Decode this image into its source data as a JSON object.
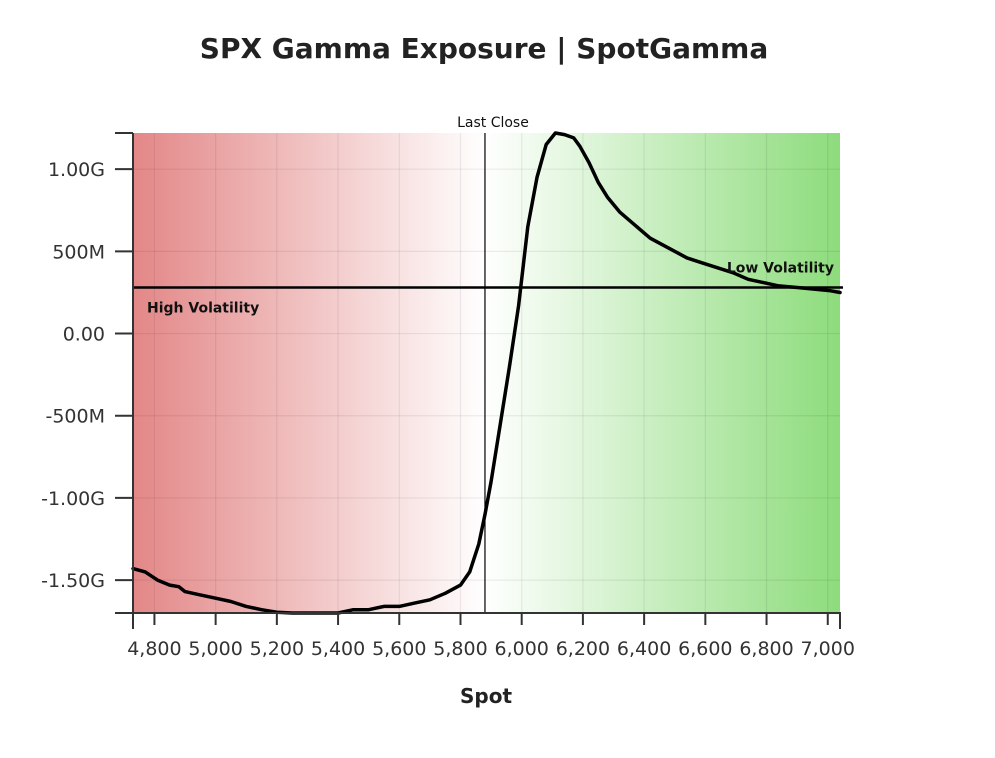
{
  "chart_data": {
    "type": "line",
    "title": "SPX Gamma Exposure | SpotGamma",
    "xlabel": "Spot",
    "ylabel": "",
    "xlim": [
      4730,
      7040
    ],
    "ylim": [
      -1.7,
      1.22
    ],
    "x_ticks": [
      4800,
      5000,
      5200,
      5400,
      5600,
      5800,
      6000,
      6200,
      6400,
      6600,
      6800,
      7000
    ],
    "x_tick_labels": [
      "4,800",
      "5,000",
      "5,200",
      "5,400",
      "5,600",
      "5,800",
      "6,000",
      "6,200",
      "6,400",
      "6,600",
      "6,800",
      "7,000"
    ],
    "y_ticks": [
      1.0,
      0.5,
      0.0,
      -0.5,
      -1.0,
      -1.5
    ],
    "y_tick_labels": [
      "1.00G",
      "500M",
      "0.00",
      "-500M",
      "-1.00G",
      "-1.50G"
    ],
    "y_units": "billions",
    "grid": true,
    "background_gradient": {
      "left_color": "#e38787",
      "center_color": "#ffffff",
      "right_color": "#8ddc7c",
      "white_at_x": 5880
    },
    "series": [
      {
        "color": "#000000",
        "x": [
          4730,
          4770,
          4810,
          4850,
          4880,
          4900,
          4950,
          5000,
          5050,
          5100,
          5150,
          5200,
          5250,
          5300,
          5350,
          5400,
          5450,
          5500,
          5550,
          5600,
          5650,
          5700,
          5750,
          5800,
          5830,
          5860,
          5880,
          5900,
          5930,
          5960,
          5990,
          6020,
          6050,
          6080,
          6110,
          6140,
          6170,
          6190,
          6220,
          6250,
          6280,
          6320,
          6370,
          6420,
          6480,
          6540,
          6590,
          6640,
          6690,
          6740,
          6790,
          6840,
          6900,
          6960,
          7010,
          7040
        ],
        "y": [
          -1.43,
          -1.45,
          -1.5,
          -1.53,
          -1.54,
          -1.57,
          -1.59,
          -1.61,
          -1.63,
          -1.66,
          -1.68,
          -1.695,
          -1.7,
          -1.7,
          -1.7,
          -1.7,
          -1.68,
          -1.68,
          -1.66,
          -1.66,
          -1.64,
          -1.62,
          -1.58,
          -1.53,
          -1.45,
          -1.28,
          -1.1,
          -0.9,
          -0.55,
          -0.2,
          0.17,
          0.65,
          0.95,
          1.15,
          1.22,
          1.21,
          1.19,
          1.14,
          1.04,
          0.92,
          0.83,
          0.74,
          0.66,
          0.58,
          0.52,
          0.46,
          0.43,
          0.4,
          0.37,
          0.33,
          0.31,
          0.29,
          0.28,
          0.27,
          0.26,
          0.25
        ]
      }
    ],
    "reference_lines": [
      {
        "orientation": "horizontal",
        "value": 0.28,
        "color": "#000000"
      },
      {
        "orientation": "vertical",
        "value": 5880,
        "color": "#000000",
        "label": "Last Close"
      }
    ],
    "annotations": [
      {
        "text": "High Volatility",
        "side": "left"
      },
      {
        "text": "Low Volatility",
        "side": "right"
      }
    ]
  }
}
